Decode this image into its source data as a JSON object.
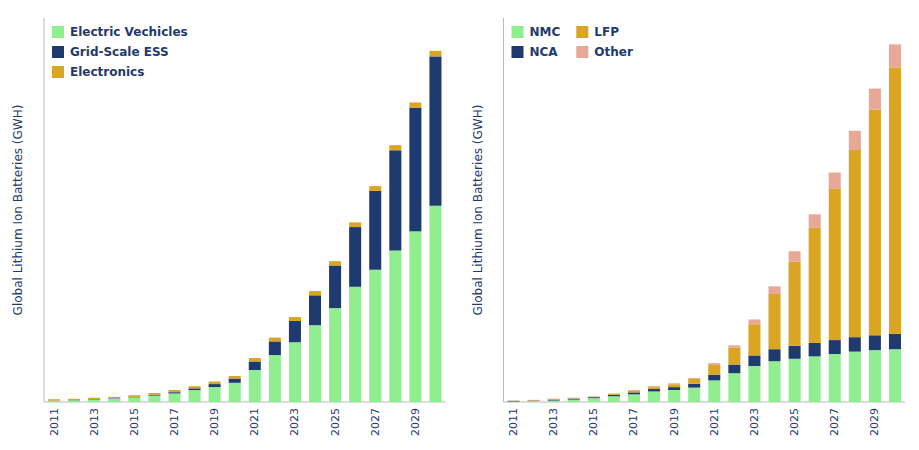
{
  "chart_data": [
    {
      "type": "bar",
      "stacked": true,
      "y_label": "Global Lithium Ion Batteries (GWH)",
      "categories": [
        "2011",
        null,
        "2013",
        null,
        "2015",
        null,
        "2017",
        null,
        "2019",
        null,
        "2021",
        null,
        "2023",
        null,
        "2025",
        null,
        "2027",
        null,
        "2029",
        null
      ],
      "series": [
        {
          "name": "Electric Vechicles",
          "color": "#90EE90",
          "values": [
            3,
            4,
            6,
            8,
            11,
            15,
            20,
            28,
            35,
            45,
            75,
            110,
            140,
            180,
            220,
            270,
            310,
            355,
            400,
            460
          ]
        },
        {
          "name": "Grid-Scale ESS",
          "color": "#1F3A6E",
          "values": [
            0.5,
            0.5,
            1,
            1,
            1,
            2,
            3,
            4,
            7,
            10,
            20,
            32,
            50,
            70,
            100,
            140,
            185,
            235,
            290,
            350
          ]
        },
        {
          "name": "Electronics",
          "color": "#DAA520",
          "values": [
            3,
            3,
            3,
            3,
            4,
            4,
            5,
            5,
            6,
            6,
            8,
            9,
            9,
            10,
            10,
            11,
            11,
            12,
            12,
            13
          ]
        }
      ],
      "ylim": [
        0,
        900
      ],
      "grid": false,
      "legend": "upper-left",
      "tick_labels": "x"
    },
    {
      "type": "bar",
      "stacked": true,
      "y_label": "Global Lithium Ion Batteries (GWH)",
      "categories": [
        "2011",
        null,
        "2013",
        null,
        "2015",
        null,
        "2017",
        null,
        "2019",
        null,
        "2021",
        null,
        "2023",
        null,
        "2025",
        null,
        "2027",
        null,
        "2029",
        null
      ],
      "series": [
        {
          "name": "NMC",
          "color": "#90EE90",
          "values": [
            1,
            2,
            3,
            5,
            8,
            12,
            16,
            22,
            25,
            30,
            45,
            60,
            75,
            85,
            90,
            95,
            100,
            105,
            108,
            110
          ]
        },
        {
          "name": "NCA",
          "color": "#1F3A6E",
          "values": [
            1,
            1,
            2,
            2,
            2,
            3,
            4,
            5,
            6,
            8,
            12,
            18,
            22,
            25,
            27,
            28,
            29,
            30,
            31,
            32
          ]
        },
        {
          "name": "LFP",
          "color": "#DAA520",
          "values": [
            0.5,
            0.5,
            1,
            1,
            1,
            2,
            3,
            4,
            6,
            10,
            20,
            35,
            65,
            115,
            175,
            240,
            315,
            390,
            470,
            555
          ]
        },
        {
          "name": "Other",
          "color": "#E8A898",
          "values": [
            1,
            1,
            1,
            1,
            1,
            1,
            2,
            2,
            2,
            2,
            4,
            5,
            10,
            16,
            22,
            28,
            34,
            40,
            44,
            48
          ]
        }
      ],
      "ylim": [
        0,
        800
      ],
      "grid": false,
      "legend": "upper-left",
      "tick_labels": "x"
    }
  ]
}
